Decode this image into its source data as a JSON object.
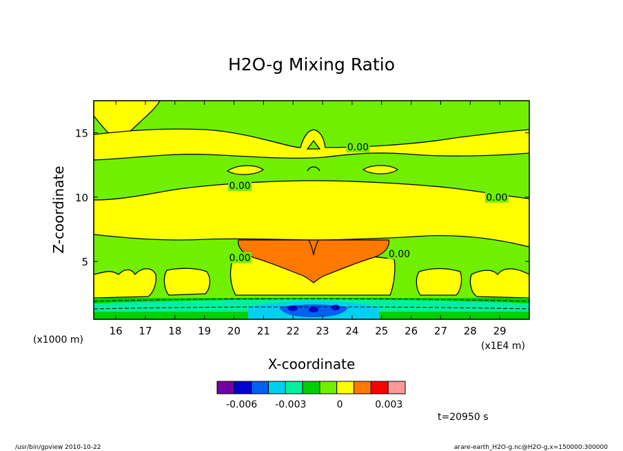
{
  "chart_data": {
    "type": "heatmap",
    "title": "H2O-g Mixing Ratio",
    "xlabel": "X-coordinate",
    "ylabel": "Z-coordinate",
    "x_unit_left": "(x1000 m)",
    "x_unit_right": "(x1E4 m)",
    "xlim": [
      15.25,
      30.0
    ],
    "ylim": [
      0.5,
      17.5
    ],
    "x_ticks": [
      16,
      17,
      18,
      19,
      20,
      21,
      22,
      23,
      24,
      25,
      26,
      27,
      28,
      29
    ],
    "y_ticks": [
      5,
      10,
      15
    ],
    "x_tick_labels": [
      "16",
      "17",
      "18",
      "19",
      "20",
      "21",
      "22",
      "23",
      "24",
      "25",
      "26",
      "27",
      "28",
      "29"
    ],
    "y_tick_labels": [
      "5",
      "10",
      "15"
    ],
    "contour_labels": [
      {
        "text": "0.00",
        "x": 24.2,
        "z": 13.9
      },
      {
        "text": "0.00",
        "x": 20.2,
        "z": 10.9
      },
      {
        "text": "0.00",
        "x": 28.9,
        "z": 10.0
      },
      {
        "text": "0.00",
        "x": 20.2,
        "z": 5.3
      },
      {
        "text": "0.00",
        "x": 25.6,
        "z": 5.6
      }
    ],
    "colorbar": {
      "colors": [
        "#7000a0",
        "#0000d0",
        "#0060f0",
        "#00d0f0",
        "#00f0a0",
        "#00d000",
        "#70f000",
        "#ffff00",
        "#ff7800",
        "#ff0000",
        "#ff9898"
      ],
      "tick_labels": [
        "-0.006",
        "-0.003",
        "0",
        "0.003"
      ],
      "tick_values": [
        -0.006,
        -0.003,
        0,
        0.003
      ],
      "vmin": -0.0075,
      "vmax": 0.004
    },
    "time_label": "t=20950 s",
    "grid": false
  },
  "footer": {
    "left": "/usr/bin/gpview   2010-10-22",
    "right": "arare-earth_H2O-g.nc@H2O-g,x=150000:300000"
  }
}
